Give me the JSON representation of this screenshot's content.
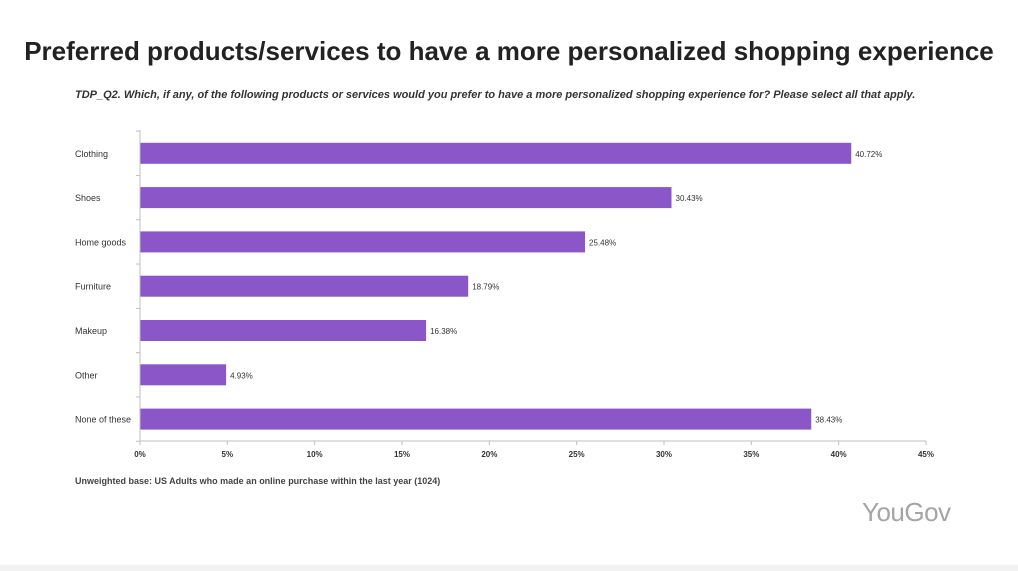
{
  "page": {
    "title": "Preferred products/services to have a more personalized shopping experience",
    "question": "TDP_Q2. Which, if any, of the following products or services would you prefer to have a more personalized shopping experience for? Please select all that apply.",
    "base_note": "Unweighted base: US Adults who made an online purchase within the last year (1024)",
    "logo_text": "YouGov"
  },
  "colors": {
    "bar": "#8a56c8",
    "axis": "#bfbfbf",
    "tick_text": "#333333"
  },
  "chart_data": {
    "type": "bar",
    "orientation": "horizontal",
    "categories": [
      "Clothing",
      "Shoes",
      "Home goods",
      "Furniture",
      "Makeup",
      "Other",
      "None of these"
    ],
    "values": [
      40.72,
      30.43,
      25.48,
      18.79,
      16.38,
      4.93,
      38.43
    ],
    "value_labels": [
      "40.72%",
      "30.43%",
      "25.48%",
      "18.79%",
      "16.38%",
      "4.93%",
      "38.43%"
    ],
    "xlim": [
      0,
      45
    ],
    "xticks": [
      0,
      5,
      10,
      15,
      20,
      25,
      30,
      35,
      40,
      45
    ],
    "xtick_labels": [
      "0%",
      "5%",
      "10%",
      "15%",
      "20%",
      "25%",
      "30%",
      "35%",
      "40%",
      "45%"
    ],
    "grid": false,
    "legend": "none"
  }
}
